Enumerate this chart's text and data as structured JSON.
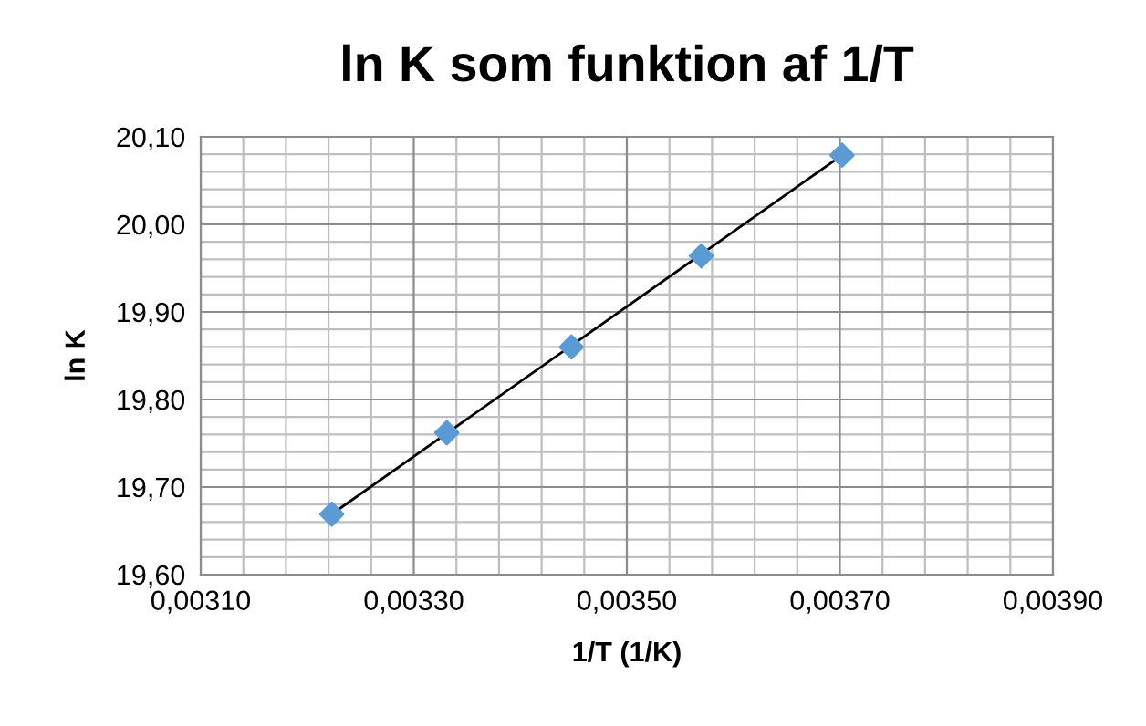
{
  "chart_data": {
    "type": "scatter",
    "title": "ln K som funktion af 1/T",
    "xlabel": "1/T (1/K)",
    "ylabel": "ln K",
    "series": [
      {
        "color": "#5b9bd5",
        "marker": "diamond",
        "x": [
          0.003223,
          0.003331,
          0.003448,
          0.00357,
          0.003702
        ],
        "values": [
          19.669,
          19.762,
          19.86,
          19.964,
          20.079
        ]
      },
      {
        "type": "line",
        "color": "#000000",
        "marker": "none",
        "line_style": "solid",
        "x": [
          0.003223,
          0.003702
        ],
        "values": [
          19.669,
          20.079
        ]
      }
    ],
    "xlim": [
      0.0031,
      0.0039
    ],
    "ylim": [
      19.6,
      20.1
    ],
    "xticks": [
      {
        "value": 0.0031,
        "label": "0,00310"
      },
      {
        "value": 0.0033,
        "label": "0,00330"
      },
      {
        "value": 0.0035,
        "label": "0,00350"
      },
      {
        "value": 0.0037,
        "label": "0,00370"
      },
      {
        "value": 0.0039,
        "label": "0,00390"
      }
    ],
    "yticks": [
      {
        "value": 19.6,
        "label": "19,60"
      },
      {
        "value": 19.7,
        "label": "19,70"
      },
      {
        "value": 19.8,
        "label": "19,80"
      },
      {
        "value": 19.9,
        "label": "19,90"
      },
      {
        "value": 20.0,
        "label": "20,00"
      },
      {
        "value": 20.1,
        "label": "20,10"
      }
    ],
    "grid": true,
    "legend": false
  }
}
